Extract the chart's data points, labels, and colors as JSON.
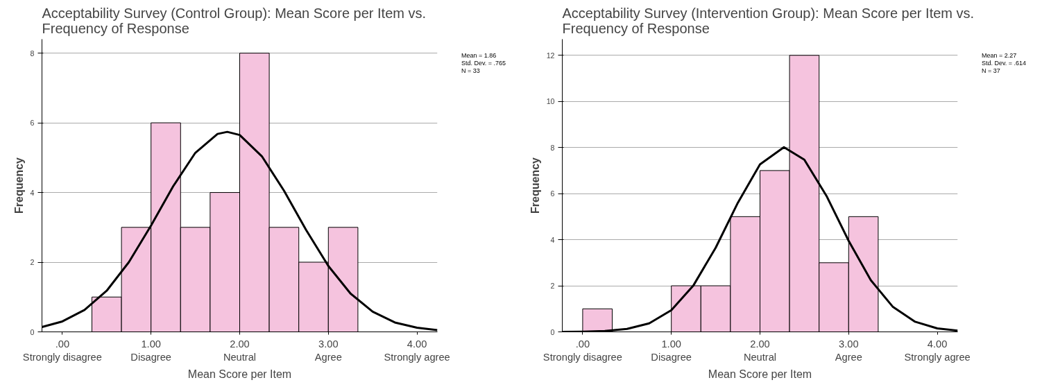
{
  "chart_data": [
    {
      "type": "histogram",
      "title": "Acceptability Survey (Control Group): Mean Score per Item vs.\nFrequency of Response",
      "xlabel": "Mean Score per Item",
      "ylabel": "Frequency",
      "color": "#f5c3de",
      "bins": [
        0.3333,
        0.6667,
        1,
        1.3333,
        1.6667,
        2,
        2.3333,
        2.6667,
        3,
        3.3333
      ],
      "values": [
        1,
        3,
        6,
        3,
        4,
        8,
        3,
        2,
        3
      ],
      "series": [
        {
          "type": "line",
          "color": "#000000",
          "x": [
            -0.23,
            0,
            0.25,
            0.5,
            0.75,
            1,
            1.25,
            1.5,
            1.75,
            1.86,
            2,
            2.25,
            2.5,
            2.75,
            3,
            3.25,
            3.5,
            3.75,
            4,
            4.23
          ],
          "values": [
            0.14,
            0.3,
            0.63,
            1.18,
            2.0,
            3.05,
            4.18,
            5.14,
            5.68,
            5.74,
            5.65,
            5.04,
            4.05,
            2.92,
            1.89,
            1.1,
            0.58,
            0.27,
            0.12,
            0.05
          ]
        }
      ],
      "xlim": [
        -0.23,
        4.23
      ],
      "xticks": [
        {
          "value": 0,
          "label": ".00\nStrongly disagree"
        },
        {
          "value": 1,
          "label": "1.00\nDisagree"
        },
        {
          "value": 2,
          "label": "2.00\nNeutral"
        },
        {
          "value": 3,
          "label": "3.00\nAgree"
        },
        {
          "value": 4,
          "label": "4.00\nStrongly agree"
        }
      ],
      "ylim": [
        0,
        8.4
      ],
      "yticks": [
        0,
        2,
        4,
        6,
        8
      ],
      "grid": "y",
      "annotations": [
        "Mean = 1.86",
        "Std. Dev. = .765",
        "N = 33"
      ]
    },
    {
      "type": "histogram",
      "title": "Acceptability Survey (Intervention Group): Mean Score per Item vs.\nFrequency of Response",
      "xlabel": "Mean Score per Item",
      "ylabel": "Frequency",
      "color": "#f5c3de",
      "bins": [
        0,
        0.3333,
        0.6667,
        1,
        1.3333,
        1.6667,
        2,
        2.3333,
        2.6667,
        3,
        3.3333
      ],
      "values": [
        1,
        0,
        0,
        2,
        2,
        5,
        7,
        12,
        3,
        5
      ],
      "series": [
        {
          "type": "line",
          "color": "#000000",
          "x": [
            -0.23,
            0,
            0.25,
            0.5,
            0.75,
            1,
            1.25,
            1.5,
            1.75,
            2,
            2.27,
            2.5,
            2.75,
            3,
            3.25,
            3.5,
            3.75,
            4,
            4.23
          ],
          "values": [
            0.0,
            0.01,
            0.04,
            0.13,
            0.37,
            0.94,
            2.02,
            3.65,
            5.6,
            7.27,
            8.01,
            7.47,
            5.9,
            3.95,
            2.24,
            1.08,
            0.44,
            0.15,
            0.05
          ]
        }
      ],
      "xlim": [
        -0.23,
        4.23
      ],
      "xticks": [
        {
          "value": 0,
          "label": ".00\nStrongly disagree"
        },
        {
          "value": 1,
          "label": "1.00\nDisagree"
        },
        {
          "value": 2,
          "label": "2.00\nNeutral"
        },
        {
          "value": 3,
          "label": "3.00\nAgree"
        },
        {
          "value": 4,
          "label": "4.00\nStrongly agree"
        }
      ],
      "ylim": [
        0,
        12.7
      ],
      "yticks": [
        0,
        2,
        4,
        6,
        8,
        10,
        12
      ],
      "grid": "y",
      "annotations": [
        "Mean = 2.27",
        "Std. Dev. = .614",
        "N = 37"
      ]
    }
  ]
}
